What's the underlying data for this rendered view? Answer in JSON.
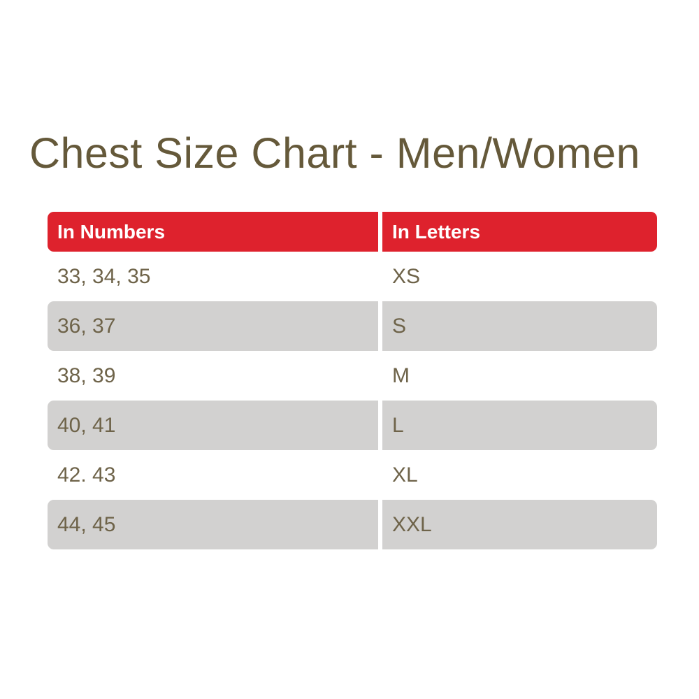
{
  "page": {
    "title": "Chest Size Chart - Men/Women"
  },
  "colors": {
    "header-bg": "#de222d",
    "header-text": "#ffffff",
    "row-shade": "#d2d1d0",
    "cell-text": "#6e6349",
    "title-text": "#65593a",
    "page-bg": "#ffffff"
  },
  "chart_data": {
    "type": "table",
    "title": "Chest Size Chart - Men/Women",
    "columns": [
      "In Numbers",
      "In Letters"
    ],
    "rows": [
      {
        "numbers": "33, 34, 35",
        "letters": "XS"
      },
      {
        "numbers": "36, 37",
        "letters": "S"
      },
      {
        "numbers": "38, 39",
        "letters": "M"
      },
      {
        "numbers": "40, 41",
        "letters": "L"
      },
      {
        "numbers": "42. 43",
        "letters": "XL"
      },
      {
        "numbers": "44, 45",
        "letters": "XXL"
      }
    ],
    "layout": {
      "shaded_row_indices": [
        1,
        3,
        5
      ],
      "header_style": "red-bar-white-text",
      "column_divider": "white-gap"
    }
  }
}
